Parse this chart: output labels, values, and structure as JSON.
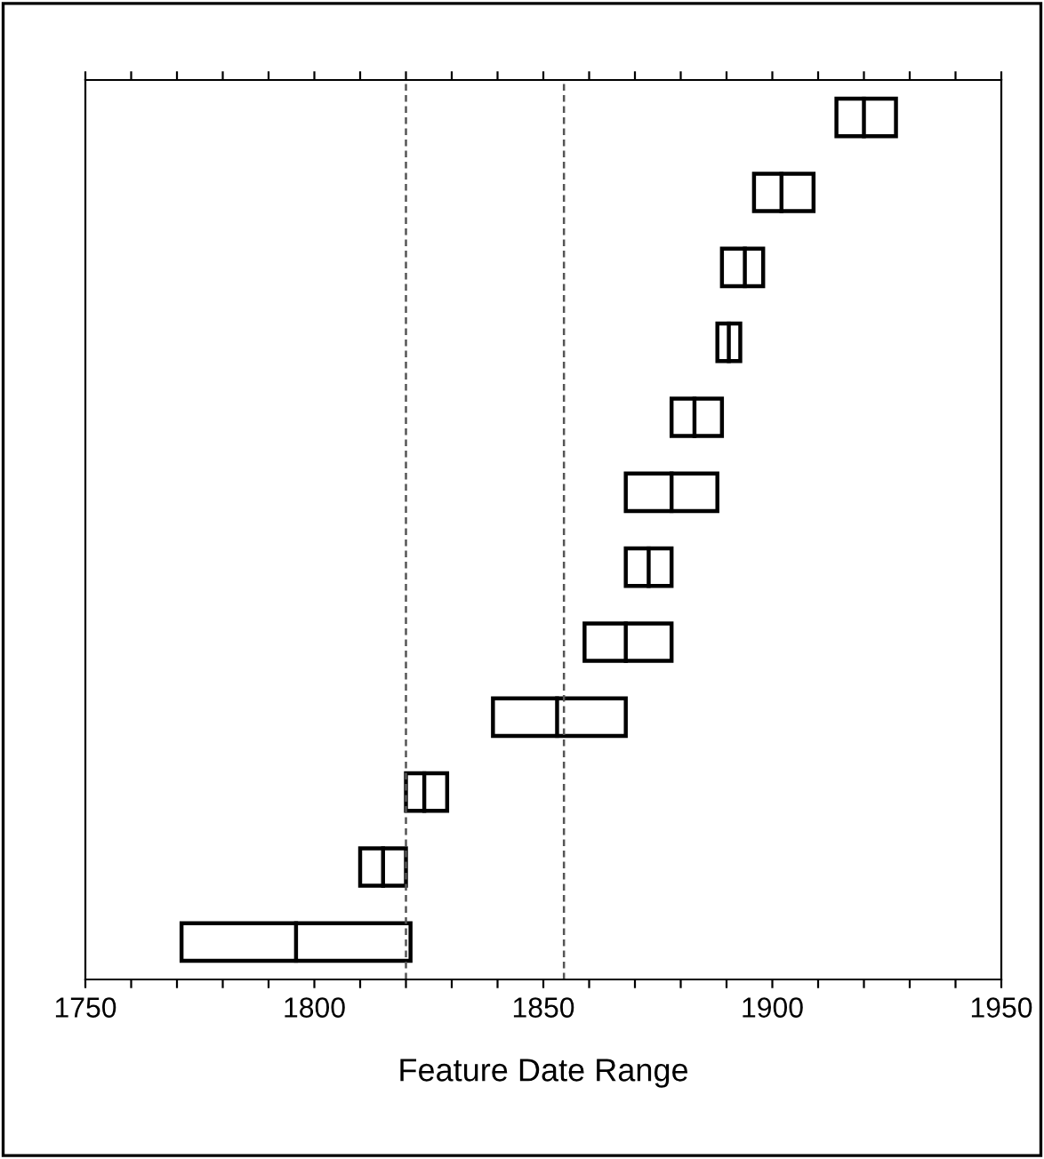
{
  "chart_data": {
    "type": "box",
    "orientation": "horizontal",
    "xlabel": "Feature Date Range",
    "categories": [
      null,
      null,
      null,
      null,
      null,
      null,
      null,
      null,
      null,
      null,
      null,
      null
    ],
    "boxes": [
      {
        "low": 1914,
        "q1": 1914,
        "median": 1920,
        "q3": 1927,
        "high": 1927
      },
      {
        "low": 1896,
        "q1": 1896,
        "median": 1902,
        "q3": 1909,
        "high": 1909
      },
      {
        "low": 1889,
        "q1": 1889,
        "median": 1894,
        "q3": 1898,
        "high": 1898
      },
      {
        "low": 1888,
        "q1": 1888,
        "median": 1890.5,
        "q3": 1893,
        "high": 1893
      },
      {
        "low": 1878,
        "q1": 1878,
        "median": 1883,
        "q3": 1889,
        "high": 1889
      },
      {
        "low": 1868,
        "q1": 1868,
        "median": 1878,
        "q3": 1888,
        "high": 1888
      },
      {
        "low": 1868,
        "q1": 1868,
        "median": 1873,
        "q3": 1878,
        "high": 1878
      },
      {
        "low": 1859,
        "q1": 1859,
        "median": 1868,
        "q3": 1878,
        "high": 1878
      },
      {
        "low": 1839,
        "q1": 1839,
        "median": 1853,
        "q3": 1868,
        "high": 1868
      },
      {
        "low": 1820,
        "q1": 1820,
        "median": 1824,
        "q3": 1829,
        "high": 1829
      },
      {
        "low": 1810,
        "q1": 1810,
        "median": 1815,
        "q3": 1820,
        "high": 1820
      },
      {
        "low": 1771,
        "q1": 1771,
        "median": 1796,
        "q3": 1821,
        "high": 1821
      }
    ],
    "color": "#000000",
    "xlim": [
      1750,
      1950
    ],
    "xticks": [
      1750,
      {
        "value": 1760,
        "label": null
      },
      {
        "value": 1770,
        "label": null
      },
      {
        "value": 1780,
        "label": null
      },
      {
        "value": 1790,
        "label": null
      },
      1800,
      {
        "value": 1810,
        "label": null
      },
      {
        "value": 1820,
        "label": null
      },
      {
        "value": 1830,
        "label": null
      },
      {
        "value": 1840,
        "label": null
      },
      1850,
      {
        "value": 1860,
        "label": null
      },
      {
        "value": 1870,
        "label": null
      },
      {
        "value": 1880,
        "label": null
      },
      {
        "value": 1890,
        "label": null
      },
      1900,
      {
        "value": 1910,
        "label": null
      },
      {
        "value": 1920,
        "label": null
      },
      {
        "value": 1930,
        "label": null
      },
      {
        "value": 1940,
        "label": null
      },
      1950
    ],
    "tick_labels": "x",
    "ref_lines": [
      {
        "axis": "x",
        "value": 1820,
        "color": "#555555",
        "line_style": "dashed"
      },
      {
        "axis": "x",
        "value": 1854.5,
        "color": "#555555",
        "line_style": "dashed"
      }
    ],
    "grid": false
  }
}
